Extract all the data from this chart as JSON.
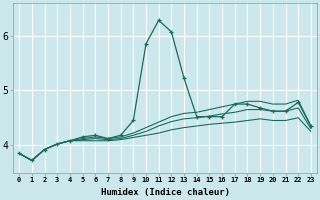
{
  "xlabel": "Humidex (Indice chaleur)",
  "ylabel": "",
  "background_color": "#cce8ec",
  "grid_color": "#ffffff",
  "line_color": "#1a6b5a",
  "xlim": [
    -0.5,
    23.5
  ],
  "ylim": [
    3.5,
    6.6
  ],
  "yticks": [
    4,
    5,
    6
  ],
  "xticks": [
    0,
    1,
    2,
    3,
    4,
    5,
    6,
    7,
    8,
    9,
    10,
    11,
    12,
    13,
    14,
    15,
    16,
    17,
    18,
    19,
    20,
    21,
    22,
    23
  ],
  "lines": [
    {
      "x": [
        0,
        1,
        2,
        3,
        4,
        5,
        6,
        7,
        8,
        9,
        10,
        11,
        12,
        13,
        14,
        15,
        16,
        17,
        18,
        19,
        20,
        21,
        22,
        23
      ],
      "y": [
        3.85,
        3.72,
        3.92,
        4.02,
        4.08,
        4.15,
        4.18,
        4.12,
        4.18,
        4.45,
        5.85,
        6.28,
        6.07,
        5.22,
        4.52,
        4.52,
        4.52,
        4.75,
        4.75,
        4.68,
        4.62,
        4.62,
        4.78,
        4.35
      ],
      "marker": true
    },
    {
      "x": [
        0,
        1,
        2,
        3,
        4,
        5,
        6,
        7,
        8,
        9,
        10,
        11,
        12,
        13,
        14,
        15,
        16,
        17,
        18,
        19,
        20,
        21,
        22,
        23
      ],
      "y": [
        3.85,
        3.72,
        3.92,
        4.02,
        4.08,
        4.12,
        4.15,
        4.12,
        4.15,
        4.22,
        4.32,
        4.42,
        4.52,
        4.58,
        4.6,
        4.65,
        4.7,
        4.75,
        4.8,
        4.8,
        4.75,
        4.75,
        4.82,
        4.35
      ],
      "marker": false
    },
    {
      "x": [
        0,
        1,
        2,
        3,
        4,
        5,
        6,
        7,
        8,
        9,
        10,
        11,
        12,
        13,
        14,
        15,
        16,
        17,
        18,
        19,
        20,
        21,
        22,
        23
      ],
      "y": [
        3.85,
        3.72,
        3.92,
        4.02,
        4.08,
        4.1,
        4.12,
        4.1,
        4.12,
        4.18,
        4.25,
        4.35,
        4.43,
        4.48,
        4.5,
        4.53,
        4.57,
        4.6,
        4.65,
        4.65,
        4.62,
        4.62,
        4.68,
        4.3
      ],
      "marker": false
    },
    {
      "x": [
        0,
        1,
        2,
        3,
        4,
        5,
        6,
        7,
        8,
        9,
        10,
        11,
        12,
        13,
        14,
        15,
        16,
        17,
        18,
        19,
        20,
        21,
        22,
        23
      ],
      "y": [
        3.85,
        3.72,
        3.92,
        4.02,
        4.08,
        4.08,
        4.08,
        4.08,
        4.1,
        4.14,
        4.18,
        4.22,
        4.28,
        4.32,
        4.35,
        4.38,
        4.4,
        4.42,
        4.45,
        4.48,
        4.45,
        4.45,
        4.5,
        4.25
      ],
      "marker": false
    }
  ]
}
